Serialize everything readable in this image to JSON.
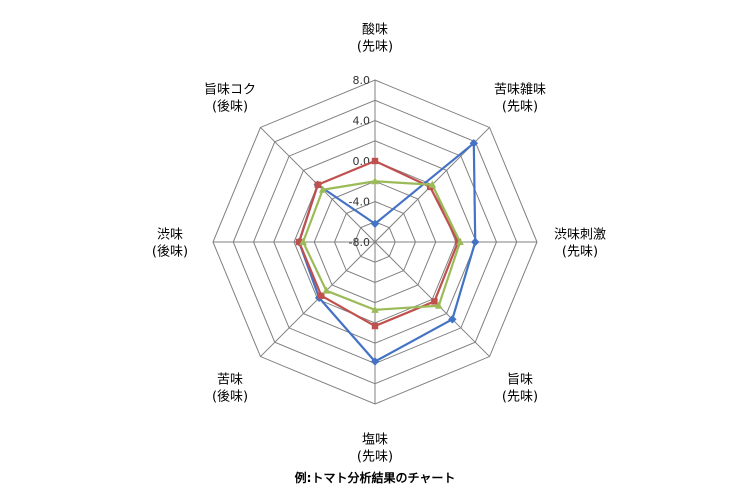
{
  "chart_data": {
    "type": "radar",
    "title": "例:トマト分析結果のチャート",
    "axes": [
      {
        "label_lines": [
          "酸味",
          "(先味)"
        ]
      },
      {
        "label_lines": [
          "苦味雑味",
          "(先味)"
        ]
      },
      {
        "label_lines": [
          "渋味刺激",
          "(先味)"
        ]
      },
      {
        "label_lines": [
          "旨味",
          "(先味)"
        ]
      },
      {
        "label_lines": [
          "塩味",
          "(先味)"
        ]
      },
      {
        "label_lines": [
          "苦味",
          "(後味)"
        ]
      },
      {
        "label_lines": [
          "渋味",
          "(後味)"
        ]
      },
      {
        "label_lines": [
          "旨味コク",
          "(後味)"
        ]
      }
    ],
    "range": [
      -8,
      8
    ],
    "ticks": [
      8.0,
      4.0,
      0.0,
      -4.0,
      -8.0
    ],
    "tick_labels": [
      "8.0",
      "4.0",
      "0.0",
      "-4.0",
      "-8.0"
    ],
    "grid_rings": [
      -8,
      -6,
      -4,
      -2,
      0,
      2,
      4,
      6,
      8
    ],
    "series": [
      {
        "color": "#4472C4",
        "marker": "diamond",
        "values": [
          -6.2,
          5.8,
          1.9,
          2.8,
          3.8,
          -0.2,
          -0.5,
          0.0
        ]
      },
      {
        "color": "#C0504D",
        "marker": "square",
        "values": [
          0.0,
          -0.3,
          0.2,
          0.3,
          0.3,
          -0.5,
          -0.5,
          0.0
        ]
      },
      {
        "color": "#9BBB59",
        "marker": "triangle",
        "values": [
          -2.0,
          0.0,
          0.4,
          0.9,
          -1.3,
          -1.2,
          -0.9,
          -0.7
        ]
      }
    ]
  }
}
